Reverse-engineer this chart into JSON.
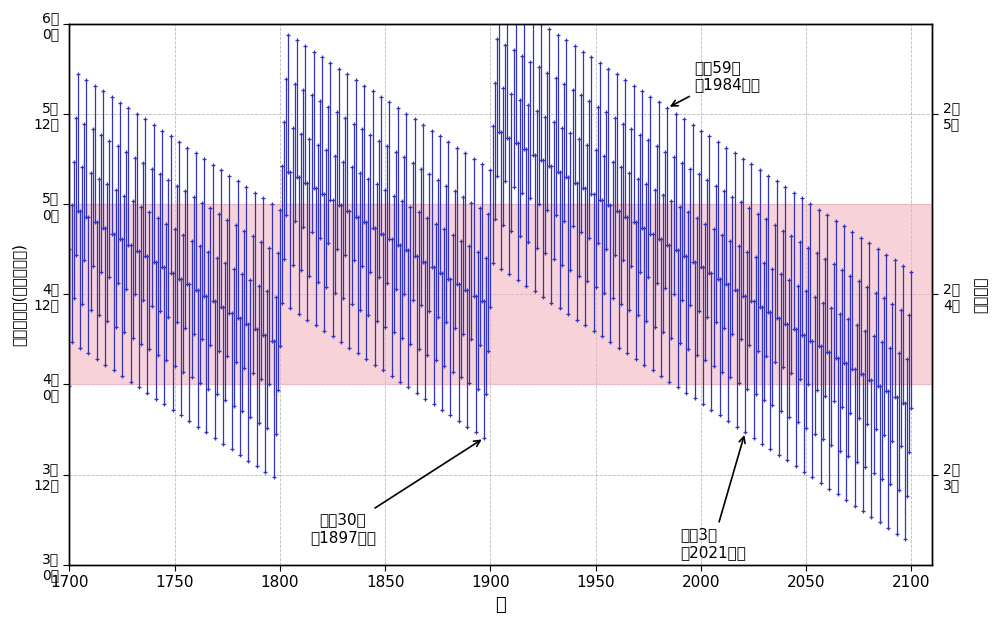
{
  "xlabel": "年",
  "ylabel_left": "立春の時刻(中央標準時)",
  "ylabel_right": "立春の日",
  "xlim": [
    1700,
    2110
  ],
  "ylim_hours": [
    72.0,
    144.0
  ],
  "yticks_left": [
    {
      "hours": 72.0,
      "label": "3日\n0時"
    },
    {
      "hours": 84.0,
      "label": "3日\n12時"
    },
    {
      "hours": 96.0,
      "label": "4日\n0時"
    },
    {
      "hours": 108.0,
      "label": "4日\n12時"
    },
    {
      "hours": 120.0,
      "label": "5日\n0時"
    },
    {
      "hours": 132.0,
      "label": "5日\n12時"
    },
    {
      "hours": 144.0,
      "label": "6日\n0時"
    }
  ],
  "yticks_right": [
    {
      "hours": 84.0,
      "label": "2月\n3日"
    },
    {
      "hours": 108.0,
      "label": "2月\n4日"
    },
    {
      "hours": 132.0,
      "label": "2月\n5日"
    }
  ],
  "band_ymin": 96.0,
  "band_ymax": 120.0,
  "band_color": "#f2b0bb",
  "band_alpha": 0.55,
  "line_color": "#3333bb",
  "marker_color": "#3333bb",
  "grid_color": "#bbbbbb",
  "ann_1984_label": "昭和59年\n（1984年）",
  "ann_1984_year": 1984,
  "ann_1897_label": "明治30年\n（1897年）",
  "ann_1897_year": 1897,
  "ann_2021_label": "令和3年\n（2021年）",
  "ann_2021_year": 2021,
  "bg_color": "#ffffff",
  "start_year": 1700,
  "end_year": 2100,
  "tropical_year_days": 365.24219
}
